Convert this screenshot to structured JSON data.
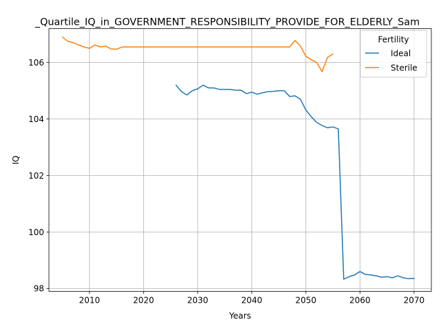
{
  "chart_data": {
    "type": "line",
    "title": "_Quartile_IQ_in_GOVERNMENT_RESPONSIBILITY_PROVIDE_FOR_ELDERLY_Sam",
    "xlabel": "Years",
    "ylabel": "IQ",
    "xlim": [
      2002.5,
      2073.2
    ],
    "ylim": [
      97.9,
      107.2
    ],
    "xticks": [
      2010,
      2020,
      2030,
      2040,
      2050,
      2060,
      2070
    ],
    "yticks": [
      98,
      100,
      102,
      104,
      106
    ],
    "grid": true,
    "legend": {
      "title": "Fertility",
      "placement": "top-right"
    },
    "series": [
      {
        "name": "Ideal",
        "color": "#1f77b4",
        "x": [
          2026,
          2027,
          2028,
          2029,
          2030,
          2031,
          2032,
          2033,
          2034,
          2035,
          2036,
          2037,
          2038,
          2039,
          2040,
          2041,
          2042,
          2043,
          2044,
          2045,
          2046,
          2047,
          2048,
          2049,
          2050,
          2051,
          2052,
          2053,
          2054,
          2055,
          2056,
          2057,
          2058,
          2059,
          2060,
          2061,
          2062,
          2063,
          2064,
          2065,
          2066,
          2067,
          2068,
          2069,
          2070
        ],
        "values": [
          105.2,
          104.97,
          104.85,
          105.0,
          105.07,
          105.2,
          105.1,
          105.1,
          105.05,
          105.05,
          105.05,
          105.02,
          105.02,
          104.9,
          104.95,
          104.88,
          104.93,
          104.97,
          104.98,
          105.0,
          105.0,
          104.8,
          104.82,
          104.7,
          104.32,
          104.08,
          103.88,
          103.77,
          103.69,
          103.72,
          103.65,
          98.33,
          98.42,
          98.48,
          98.6,
          98.5,
          98.48,
          98.45,
          98.4,
          98.42,
          98.38,
          98.45,
          98.38,
          98.35,
          98.36
        ]
      },
      {
        "name": "Sterile",
        "color": "#ff7f0e",
        "x": [
          2005,
          2006,
          2007,
          2008,
          2009,
          2010,
          2011,
          2012,
          2013,
          2014,
          2015,
          2016,
          2017,
          2018,
          2019,
          2020,
          2021,
          2022,
          2023,
          2024,
          2025,
          2026,
          2027,
          2028,
          2029,
          2030,
          2031,
          2032,
          2033,
          2034,
          2035,
          2036,
          2037,
          2038,
          2039,
          2040,
          2041,
          2042,
          2043,
          2044,
          2045,
          2046,
          2047,
          2048,
          2049,
          2050,
          2051,
          2052,
          2053,
          2054,
          2055
        ],
        "values": [
          106.9,
          106.75,
          106.7,
          106.62,
          106.55,
          106.5,
          106.62,
          106.55,
          106.58,
          106.48,
          106.47,
          106.55,
          106.55,
          106.55,
          106.55,
          106.55,
          106.55,
          106.55,
          106.55,
          106.55,
          106.55,
          106.55,
          106.55,
          106.55,
          106.55,
          106.55,
          106.55,
          106.55,
          106.55,
          106.55,
          106.55,
          106.55,
          106.55,
          106.55,
          106.55,
          106.55,
          106.55,
          106.55,
          106.55,
          106.55,
          106.55,
          106.55,
          106.55,
          106.78,
          106.58,
          106.22,
          106.1,
          106.0,
          105.68,
          106.18,
          106.3
        ]
      }
    ]
  }
}
